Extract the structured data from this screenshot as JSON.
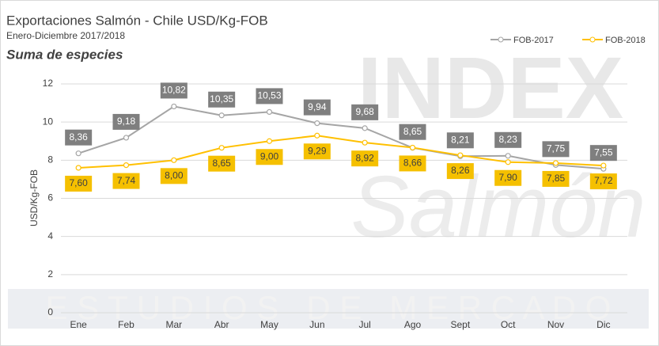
{
  "chart_data": {
    "type": "line",
    "title": "Exportaciones Salmón - Chile USD/Kg-FOB",
    "subtitle": "Enero-Diciembre 2017/2018",
    "note": "Suma de especies",
    "y_label": "USD/Kg-FOB",
    "watermark": [
      "INDEX",
      "Salmón",
      "E S T U D I O S   D E   M E R C A D O"
    ],
    "categories": [
      "Ene",
      "Feb",
      "Mar",
      "Abr",
      "May",
      "Jun",
      "Jul",
      "Ago",
      "Sept",
      "Oct",
      "Nov",
      "Dic"
    ],
    "series": [
      {
        "name": "FOB-2017",
        "color": "#a5a5a5",
        "label_bg": "#7f7f7f",
        "label_color": "#ffffff",
        "values": [
          8.36,
          9.18,
          10.82,
          10.35,
          10.53,
          9.94,
          9.68,
          8.65,
          8.21,
          8.23,
          7.75,
          7.55
        ],
        "value_labels": [
          "8,36",
          "9,18",
          "10,82",
          "10,35",
          "10,53",
          "9,94",
          "9,68",
          "8,65",
          "8,21",
          "8,23",
          "7,75",
          "7,55"
        ]
      },
      {
        "name": "FOB-2018",
        "color": "#ffc000",
        "label_bg": "#f5c000",
        "label_color": "#404040",
        "values": [
          7.6,
          7.74,
          8.0,
          8.65,
          9.0,
          9.29,
          8.92,
          8.66,
          8.26,
          7.9,
          7.85,
          7.72
        ],
        "value_labels": [
          "7,60",
          "7,74",
          "8,00",
          "8,65",
          "9,00",
          "9,29",
          "8,92",
          "8,66",
          "8,26",
          "7,90",
          "7,85",
          "7,72"
        ]
      }
    ],
    "ylim": [
      0,
      12
    ],
    "yticks": [
      0,
      2,
      4,
      6,
      8,
      10,
      12
    ],
    "grid": true,
    "legend": "top-right"
  }
}
